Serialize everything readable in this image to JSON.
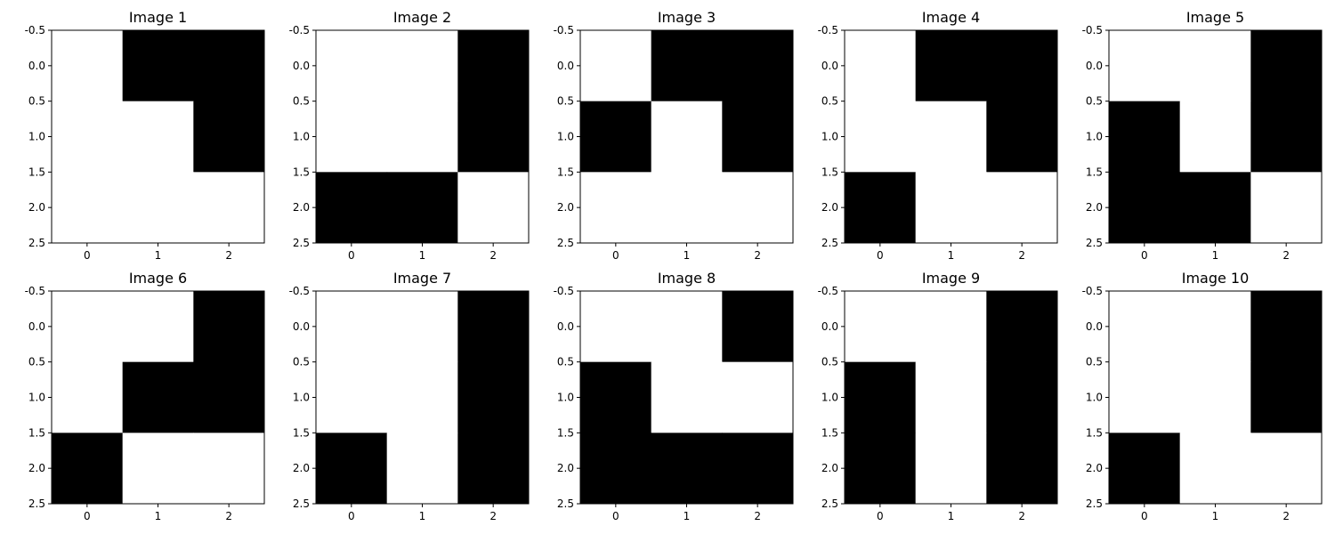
{
  "chart_data": [
    {
      "type": "heatmap",
      "title": "Image 1",
      "colormap": "gray",
      "x_ticks": [
        "0",
        "1",
        "2"
      ],
      "y_ticks": [
        "-0.5",
        "0.0",
        "0.5",
        "1.0",
        "1.5",
        "2.0",
        "2.5"
      ],
      "values": [
        [
          1,
          0,
          0
        ],
        [
          1,
          1,
          0
        ],
        [
          1,
          1,
          1
        ]
      ]
    },
    {
      "type": "heatmap",
      "title": "Image 2",
      "colormap": "gray",
      "x_ticks": [
        "0",
        "1",
        "2"
      ],
      "y_ticks": [
        "-0.5",
        "0.0",
        "0.5",
        "1.0",
        "1.5",
        "2.0",
        "2.5"
      ],
      "values": [
        [
          1,
          1,
          0
        ],
        [
          1,
          1,
          0
        ],
        [
          0,
          0,
          1
        ]
      ]
    },
    {
      "type": "heatmap",
      "title": "Image 3",
      "colormap": "gray",
      "x_ticks": [
        "0",
        "1",
        "2"
      ],
      "y_ticks": [
        "-0.5",
        "0.0",
        "0.5",
        "1.0",
        "1.5",
        "2.0",
        "2.5"
      ],
      "values": [
        [
          1,
          0,
          0
        ],
        [
          0,
          1,
          0
        ],
        [
          1,
          1,
          1
        ]
      ]
    },
    {
      "type": "heatmap",
      "title": "Image 4",
      "colormap": "gray",
      "x_ticks": [
        "0",
        "1",
        "2"
      ],
      "y_ticks": [
        "-0.5",
        "0.0",
        "0.5",
        "1.0",
        "1.5",
        "2.0",
        "2.5"
      ],
      "values": [
        [
          1,
          0,
          0
        ],
        [
          1,
          1,
          0
        ],
        [
          0,
          1,
          1
        ]
      ]
    },
    {
      "type": "heatmap",
      "title": "Image 5",
      "colormap": "gray",
      "x_ticks": [
        "0",
        "1",
        "2"
      ],
      "y_ticks": [
        "-0.5",
        "0.0",
        "0.5",
        "1.0",
        "1.5",
        "2.0",
        "2.5"
      ],
      "values": [
        [
          1,
          1,
          0
        ],
        [
          0,
          1,
          0
        ],
        [
          0,
          0,
          1
        ]
      ]
    },
    {
      "type": "heatmap",
      "title": "Image 6",
      "colormap": "gray",
      "x_ticks": [
        "0",
        "1",
        "2"
      ],
      "y_ticks": [
        "-0.5",
        "0.0",
        "0.5",
        "1.0",
        "1.5",
        "2.0",
        "2.5"
      ],
      "values": [
        [
          1,
          1,
          0
        ],
        [
          1,
          0,
          0
        ],
        [
          0,
          1,
          1
        ]
      ]
    },
    {
      "type": "heatmap",
      "title": "Image 7",
      "colormap": "gray",
      "x_ticks": [
        "0",
        "1",
        "2"
      ],
      "y_ticks": [
        "-0.5",
        "0.0",
        "0.5",
        "1.0",
        "1.5",
        "2.0",
        "2.5"
      ],
      "values": [
        [
          1,
          1,
          0
        ],
        [
          1,
          1,
          0
        ],
        [
          0,
          1,
          0
        ]
      ]
    },
    {
      "type": "heatmap",
      "title": "Image 8",
      "colormap": "gray",
      "x_ticks": [
        "0",
        "1",
        "2"
      ],
      "y_ticks": [
        "-0.5",
        "0.0",
        "0.5",
        "1.0",
        "1.5",
        "2.0",
        "2.5"
      ],
      "values": [
        [
          1,
          1,
          0
        ],
        [
          0,
          1,
          1
        ],
        [
          0,
          0,
          0
        ]
      ]
    },
    {
      "type": "heatmap",
      "title": "Image 9",
      "colormap": "gray",
      "x_ticks": [
        "0",
        "1",
        "2"
      ],
      "y_ticks": [
        "-0.5",
        "0.0",
        "0.5",
        "1.0",
        "1.5",
        "2.0",
        "2.5"
      ],
      "values": [
        [
          1,
          1,
          0
        ],
        [
          0,
          1,
          0
        ],
        [
          0,
          1,
          0
        ]
      ]
    },
    {
      "type": "heatmap",
      "title": "Image 10",
      "colormap": "gray",
      "x_ticks": [
        "0",
        "1",
        "2"
      ],
      "y_ticks": [
        "-0.5",
        "0.0",
        "0.5",
        "1.0",
        "1.5",
        "2.0",
        "2.5"
      ],
      "values": [
        [
          1,
          1,
          0
        ],
        [
          1,
          1,
          0
        ],
        [
          0,
          1,
          1
        ]
      ]
    }
  ]
}
